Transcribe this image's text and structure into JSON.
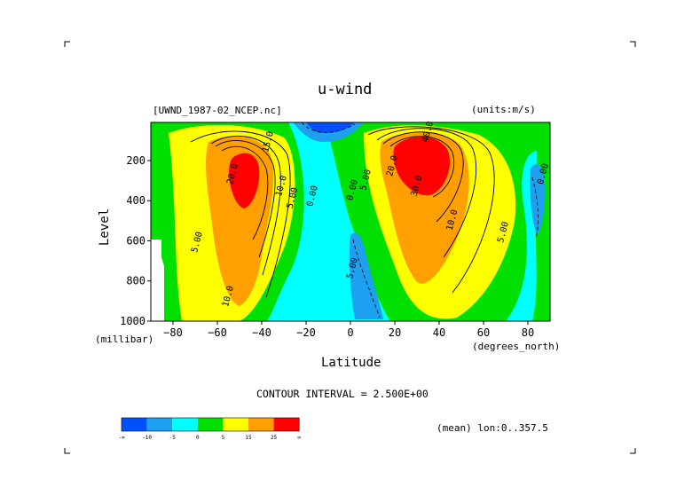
{
  "chart_data": {
    "type": "heatmap",
    "title": "u-wind",
    "source_label": "[UWND_1987-02_NCEP.nc]",
    "units_label": "(units:m/s)",
    "xlabel": "Latitude",
    "xunit": "(degrees_north)",
    "ylabel": "Level",
    "yunit": "(millibar)",
    "xlim": [
      -90,
      90
    ],
    "ylim": [
      1000,
      10
    ],
    "x_ticks": [
      -80,
      -60,
      -40,
      -20,
      0,
      20,
      40,
      60,
      80
    ],
    "x_tick_labels": [
      "−80",
      "−60",
      "−40",
      "−20",
      "0",
      "20",
      "40",
      "60",
      "80"
    ],
    "y_ticks": [
      200,
      400,
      600,
      800,
      1000
    ],
    "y_tick_labels": [
      "200",
      "400",
      "600",
      "800",
      "1000"
    ],
    "contour_interval_text": "CONTOUR INTERVAL = 2.500E+00",
    "mean_text": "(mean) lon:0..357.5",
    "contour_labels": [
      {
        "text": "15.0",
        "x": -36,
        "y": 110
      },
      {
        "text": "20.0",
        "x": -52,
        "y": 270
      },
      {
        "text": "10.0",
        "x": -30,
        "y": 330
      },
      {
        "text": "5.00",
        "x": -25,
        "y": 390
      },
      {
        "text": "5.00",
        "x": -68,
        "y": 610
      },
      {
        "text": "10.0",
        "x": -54,
        "y": 880
      },
      {
        "text": "0.00",
        "x": -16,
        "y": 380
      },
      {
        "text": "0.00",
        "x": 2,
        "y": 350
      },
      {
        "text": "5.00",
        "x": 8,
        "y": 300
      },
      {
        "text": "20.0",
        "x": 20,
        "y": 230
      },
      {
        "text": "40.0",
        "x": 36,
        "y": 60
      },
      {
        "text": "30.0",
        "x": 31,
        "y": 330
      },
      {
        "text": "10.0",
        "x": 47,
        "y": 500
      },
      {
        "text": "5.00",
        "x": 70,
        "y": 560
      },
      {
        "text": "0.00",
        "x": 88,
        "y": 270
      },
      {
        "text": "5.00",
        "x": 2,
        "y": 740
      }
    ],
    "colorbar": {
      "colors": [
        "#0050ff",
        "#1ea0f0",
        "#00ffff",
        "#00e000",
        "#ffff00",
        "#ff9f00",
        "#ff0000"
      ],
      "labels": [
        "-∞",
        "-10",
        "-5",
        "0",
        "5",
        "15",
        "25",
        "∞"
      ]
    }
  }
}
